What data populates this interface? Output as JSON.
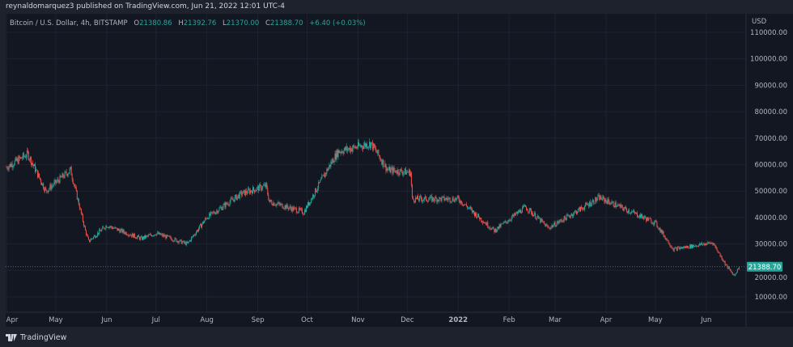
{
  "header": {
    "published": "reynaldomarquez3 published on TradingView.com, Jun 21, 2022 12:01 UTC-4"
  },
  "legend": {
    "symbol": "Bitcoin / U.S. Dollar, 4h, BITSTAMP",
    "o_label": "O",
    "open": "21380.86",
    "h_label": "H",
    "high": "21392.76",
    "l_label": "L",
    "low": "21370.00",
    "c_label": "C",
    "close": "21388.70",
    "change": "+6.40 (+0.03%)"
  },
  "footer": {
    "brand": "TradingView"
  },
  "colors": {
    "up": "#26a69a",
    "down": "#ef5350",
    "grid": "#1f2330",
    "text": "#b2b5be"
  },
  "chart_data": {
    "type": "candlestick",
    "title": "Bitcoin / U.S. Dollar, 4h, BITSTAMP",
    "currency": "USD",
    "last_price": 21388.7,
    "last_price_label": "21388.70",
    "ylim": [
      0,
      117000
    ],
    "y_ticks": [
      "110000.00",
      "100000.00",
      "90000.00",
      "80000.00",
      "70000.00",
      "60000.00",
      "50000.00",
      "40000.00",
      "30000.00",
      "20000.00",
      "10000.00"
    ],
    "y_tick_values": [
      110000,
      100000,
      90000,
      80000,
      70000,
      60000,
      50000,
      40000,
      30000,
      20000,
      10000
    ],
    "x_ticks": [
      "Apr",
      "May",
      "Jun",
      "Jul",
      "Aug",
      "Sep",
      "Oct",
      "Nov",
      "Dec",
      "2022",
      "Feb",
      "Mar",
      "Apr",
      "May",
      "Jun"
    ],
    "x_range_days": [
      0,
      447
    ],
    "x_tick_days": [
      0,
      30,
      61,
      91,
      122,
      153,
      183,
      214,
      244,
      275,
      306,
      334,
      365,
      395,
      426
    ],
    "price_path": [
      [
        0,
        59000
      ],
      [
        13,
        64000
      ],
      [
        24,
        50000
      ],
      [
        39,
        58000
      ],
      [
        48,
        35000
      ],
      [
        50,
        31000
      ],
      [
        61,
        37000
      ],
      [
        82,
        32000
      ],
      [
        91,
        34000
      ],
      [
        110,
        30000
      ],
      [
        122,
        40000
      ],
      [
        143,
        49000
      ],
      [
        158,
        52000
      ],
      [
        160,
        46000
      ],
      [
        181,
        42000
      ],
      [
        197,
        60000
      ],
      [
        202,
        65000
      ],
      [
        222,
        68000
      ],
      [
        232,
        58000
      ],
      [
        246,
        57000
      ],
      [
        247,
        47000
      ],
      [
        275,
        47000
      ],
      [
        297,
        35000
      ],
      [
        316,
        44000
      ],
      [
        330,
        36000
      ],
      [
        361,
        47500
      ],
      [
        395,
        38000
      ],
      [
        406,
        28000
      ],
      [
        430,
        30500
      ],
      [
        438,
        22000
      ],
      [
        443,
        18000
      ],
      [
        446,
        21388.7
      ]
    ]
  }
}
